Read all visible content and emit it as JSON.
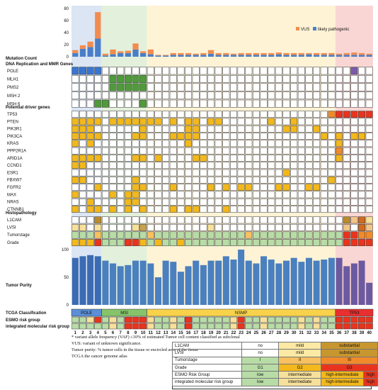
{
  "chart_data": {
    "type": "heatmap",
    "samples": [
      "1",
      "2",
      "3",
      "4",
      "5",
      "6",
      "7",
      "8",
      "9",
      "10",
      "11",
      "12",
      "13",
      "14",
      "15",
      "16",
      "17",
      "18",
      "19",
      "20",
      "21",
      "22",
      "23",
      "24",
      "25",
      "26",
      "27",
      "28",
      "29",
      "30",
      "31",
      "32",
      "33",
      "34",
      "35",
      "36",
      "37",
      "38",
      "39",
      "40"
    ],
    "mutation_count": {
      "title": "Mutation Count",
      "yticks": [
        "0",
        "20",
        "40",
        "60",
        "80"
      ],
      "ylim": [
        0,
        80
      ],
      "legend": [
        "VUS",
        "likely pathogenic"
      ],
      "vus": [
        5,
        6,
        9,
        44,
        3,
        8,
        3,
        4,
        10,
        3,
        8,
        1,
        1,
        3,
        3,
        3,
        2,
        3,
        6,
        3,
        3,
        2,
        3,
        3,
        3,
        3,
        3,
        3,
        3,
        3,
        3,
        2,
        3,
        3,
        3,
        2,
        3,
        4,
        3,
        2
      ],
      "likely_pathogenic": [
        6,
        13,
        16,
        30,
        2,
        4,
        6,
        6,
        12,
        6,
        4,
        2,
        2,
        3,
        3,
        3,
        3,
        3,
        5,
        3,
        3,
        3,
        3,
        3,
        3,
        3,
        3,
        4,
        3,
        3,
        3,
        4,
        3,
        3,
        3,
        3,
        3,
        3,
        3,
        3
      ]
    },
    "section_dna": "DNA Replication and MMR Genes",
    "mmr_genes": [
      "POLE",
      "MLH1",
      "PMS2",
      "MSH 2",
      "MSH 6"
    ],
    "section_driver": "Potential driver genes",
    "driver_genes": [
      "TP53",
      "PTEN",
      "PIK3R1",
      "PIK3CA",
      "KRAS",
      "PPP2R1A",
      "ARID1A",
      "CCND1",
      "ESR1",
      "FBXW7",
      "FGFR2",
      "MAX",
      "NRAS",
      "CTNNB1"
    ],
    "section_histo": "Histopathology",
    "histo_rows": [
      "L1CAM",
      "LVSI",
      "Tumorstage",
      "Grade"
    ],
    "purity": {
      "title": "Tumor Purity",
      "yticks": [
        "0",
        "50",
        "100"
      ],
      "ylim": [
        0,
        100
      ],
      "values": [
        85,
        88,
        90,
        88,
        80,
        75,
        70,
        72,
        80,
        80,
        75,
        50,
        80,
        78,
        60,
        70,
        80,
        72,
        80,
        80,
        88,
        82,
        100,
        80,
        75,
        88,
        82,
        75,
        80,
        85,
        78,
        85,
        80,
        82,
        85,
        85,
        70,
        75,
        80,
        40
      ]
    },
    "tcga_title": "TCGA Classification",
    "esmo_title": "ESMO risk group",
    "integrated_title": "integrated molecular risk group",
    "tcga_groups": [
      {
        "label": "POLE",
        "start": 1,
        "end": 4,
        "color": "#5b8fd6"
      },
      {
        "label": "MSI",
        "start": 5,
        "end": 10,
        "color": "#86c36a"
      },
      {
        "label": "NSMP",
        "start": 11,
        "end": 35,
        "color": "#f7d24a"
      },
      {
        "label": "TP53",
        "start": 36,
        "end": 40,
        "color": "#e83030"
      }
    ],
    "colors": {
      "vus": "#f28c4e",
      "likely_pathogenic": "#4a7fc8",
      "pole_bg": "#dbe5f4",
      "msi_bg": "#e3f0dc",
      "nsmp_bg": "#fff3d6",
      "tp53_bg": "#f9d6d3",
      "mut_pole": "#3a76d0",
      "mut_msi": "#4f9a3a",
      "mut_yellow": "#f2b81c",
      "mut_orange": "#f18a2a",
      "mut_red": "#e8341e",
      "mut_purple": "#7a5aa8",
      "purity_pole": "#3b6cb3",
      "purity_rest": "#4a80bf",
      "purity_tp53": "#6c5aa0"
    },
    "pole_marks": [
      [
        1,
        1
      ],
      [
        1,
        2
      ],
      [
        1,
        3
      ],
      [
        1,
        4
      ],
      [
        1,
        38
      ]
    ],
    "mmr_marks": [
      [
        2,
        6
      ],
      [
        2,
        7
      ],
      [
        2,
        8
      ],
      [
        2,
        9
      ],
      [
        2,
        10
      ],
      [
        3,
        6
      ],
      [
        3,
        7
      ],
      [
        3,
        8
      ],
      [
        3,
        9
      ],
      [
        3,
        10
      ],
      [
        5,
        4
      ],
      [
        5,
        5
      ],
      [
        5,
        10
      ]
    ],
    "driver_marks": [
      {
        "row": 0,
        "cols": [
          35,
          36,
          37,
          38,
          39,
          40
        ],
        "color": "red"
      },
      {
        "row": 1,
        "cols": [
          1,
          2,
          3,
          4,
          6,
          7,
          8,
          9,
          10,
          11,
          12,
          14,
          16,
          17,
          19,
          20,
          27,
          30
        ],
        "color": "yellow"
      },
      {
        "row": 2,
        "cols": [
          1,
          2,
          3,
          10,
          16,
          17,
          29,
          30,
          33
        ],
        "color": "yellow"
      },
      {
        "row": 3,
        "cols": [
          1,
          2,
          3,
          4,
          9,
          10,
          14,
          15,
          16,
          17,
          34,
          36,
          38,
          39
        ],
        "color": "yellow"
      },
      {
        "row": 4,
        "cols": [
          1,
          3,
          16,
          36
        ],
        "color": "yellow"
      },
      {
        "row": 5,
        "cols": [
          36
        ],
        "color": "orange"
      },
      {
        "row": 6,
        "cols": [
          1,
          2,
          3,
          4,
          9,
          10,
          12,
          17,
          18,
          36
        ],
        "color": "yellow"
      },
      {
        "row": 7,
        "cols": [
          1,
          2
        ],
        "color": "yellow"
      },
      {
        "row": 8,
        "cols": [
          29
        ],
        "color": "yellow"
      },
      {
        "row": 9,
        "cols": [
          1,
          2,
          9,
          35
        ],
        "color": "yellow"
      },
      {
        "row": 10,
        "cols": [
          4,
          9,
          10,
          14,
          19,
          21,
          23,
          24,
          28,
          29,
          32,
          33
        ],
        "color": "yellow"
      },
      {
        "row": 11,
        "cols": [
          1,
          6,
          8,
          9
        ],
        "color": "yellow"
      },
      {
        "row": 12,
        "cols": [
          3,
          8,
          9
        ],
        "color": "yellow"
      },
      {
        "row": 13,
        "cols": [
          1,
          3,
          4,
          6,
          8,
          10,
          14,
          16,
          17,
          21
        ],
        "color": "yellow"
      }
    ],
    "histo_marks": {
      "L1CAM": {
        "4": "#b98b2a",
        "37": "#b98b2a",
        "38": "#f2c48a",
        "39": "#d06b20",
        "40": "#f7e09a"
      },
      "LVSI": {
        "1": "#f7e09a",
        "2": "#f7e09a",
        "4": "#f7e09a",
        "9": "#f7e09a",
        "10": "#c8a050",
        "19": "#f7e09a",
        "37": "#f2c48a",
        "39": "#d06b20",
        "40": "#f2c48a"
      },
      "Tumorstage": {
        "default": "#b8dca6",
        "4": "#f7c060",
        "11": "#f7c060",
        "24": "#f7c060",
        "37": "#e8341e",
        "38": "#e8341e",
        "39": "#f18a2a",
        "40": "#f18a2a"
      },
      "Grade": {
        "default": "#b8dca6",
        "1": "#f2b81c",
        "2": "#f2b81c",
        "3": "#f2b81c",
        "4": "#e8341e",
        "8": "#e8341e",
        "9": "#e8341e",
        "10": "#f2b81c",
        "12": "#f2b81c",
        "15": "#f2b81c",
        "37": "#e8341e",
        "38": "#e8341e",
        "39": "#e8341e",
        "40": "#e8341e"
      }
    },
    "esmo": [
      "#b8dca6",
      "#b8dca6",
      "#f7e09a",
      "#e8341e",
      "#b8dca6",
      "#f7e09a",
      "#b8dca6",
      "#e8341e",
      "#e8341e",
      "#e8341e",
      "#f7e09a",
      "#b8dca6",
      "#b8dca6",
      "#f7e09a",
      "#b8dca6",
      "#e8341e",
      "#b8dca6",
      "#b8dca6",
      "#b8dca6",
      "#b8dca6",
      "#b8dca6",
      "#f7e09a",
      "#e8341e",
      "#b8dca6",
      "#b8dca6",
      "#f7e09a",
      "#b8dca6",
      "#b8dca6",
      "#b8dca6",
      "#b8dca6",
      "#f7e09a",
      "#b8dca6",
      "#f7e09a",
      "#b8dca6",
      "#b8dca6",
      "#e8341e",
      "#e8341e",
      "#e8341e",
      "#e8341e",
      "#e8341e"
    ],
    "integrated": [
      "#b8dca6",
      "#b8dca6",
      "#b8dca6",
      "#b8dca6",
      "#b8dca6",
      "#f7e09a",
      "#b8dca6",
      "#e8341e",
      "#e8341e",
      "#e8341e",
      "#f7e09a",
      "#b8dca6",
      "#b8dca6",
      "#f7e09a",
      "#b8dca6",
      "#e8341e",
      "#b8dca6",
      "#b8dca6",
      "#b8dca6",
      "#b8dca6",
      "#b8dca6",
      "#f7e09a",
      "#e8341e",
      "#b8dca6",
      "#b8dca6",
      "#f7e09a",
      "#b8dca6",
      "#b8dca6",
      "#b8dca6",
      "#b8dca6",
      "#f7e09a",
      "#b8dca6",
      "#f7e09a",
      "#b8dca6",
      "#b8dca6",
      "#e8341e",
      "#e8341e",
      "#e8341e",
      "#e8341e",
      "#e8341e"
    ]
  },
  "notes": [
    "* variant allele frequency (VAF) ≤10% of estimated Tumor cell content classified as subclonal",
    "VUS: variant of unknown significance.",
    "Tumor purity: % tumor cells in the tissue or encircled area of the tissue",
    "TCGA the cancer genome atlas"
  ],
  "legend_table": {
    "rows": [
      {
        "label": "L1CAM",
        "cells": [
          {
            "text": "no",
            "color": "#ffffff"
          },
          {
            "text": "mild",
            "color": "#fbe9a4"
          },
          {
            "text": "substantial",
            "color": "#c8962e",
            "span": 2
          }
        ]
      },
      {
        "label": "LVSI",
        "cells": [
          {
            "text": "no",
            "color": "#ffffff"
          },
          {
            "text": "mild",
            "color": "#fbe9a4"
          },
          {
            "text": "substantial",
            "color": "#c8962e",
            "span": 2
          }
        ]
      },
      {
        "label": "Tumorstage",
        "cells": [
          {
            "text": "I",
            "color": "#b8dca6"
          },
          {
            "text": "II",
            "color": "#f7c060"
          },
          {
            "text": "III",
            "color": "#f18a2a",
            "span": 2
          }
        ]
      },
      {
        "label": "Grade",
        "cells": [
          {
            "text": "G1",
            "color": "#b8dca6"
          },
          {
            "text": "G2",
            "color": "#f2b81c"
          },
          {
            "text": "G3",
            "color": "#e8341e",
            "span": 2
          }
        ]
      },
      {
        "label": "ESMO Risk Group",
        "cells": [
          {
            "text": "low",
            "color": "#b8dca6"
          },
          {
            "text": "intermediate",
            "color": "#f7e09a"
          },
          {
            "text": "high-intermediate",
            "color": "#f2b81c"
          },
          {
            "text": "high",
            "color": "#e8341e"
          }
        ]
      },
      {
        "label": "integrated molecular risk group",
        "cells": [
          {
            "text": "low",
            "color": "#b8dca6"
          },
          {
            "text": "intermediate",
            "color": "#f7e09a"
          },
          {
            "text": "high-intermediate",
            "color": "#f2b81c"
          },
          {
            "text": "high",
            "color": "#e8341e"
          }
        ]
      }
    ]
  }
}
